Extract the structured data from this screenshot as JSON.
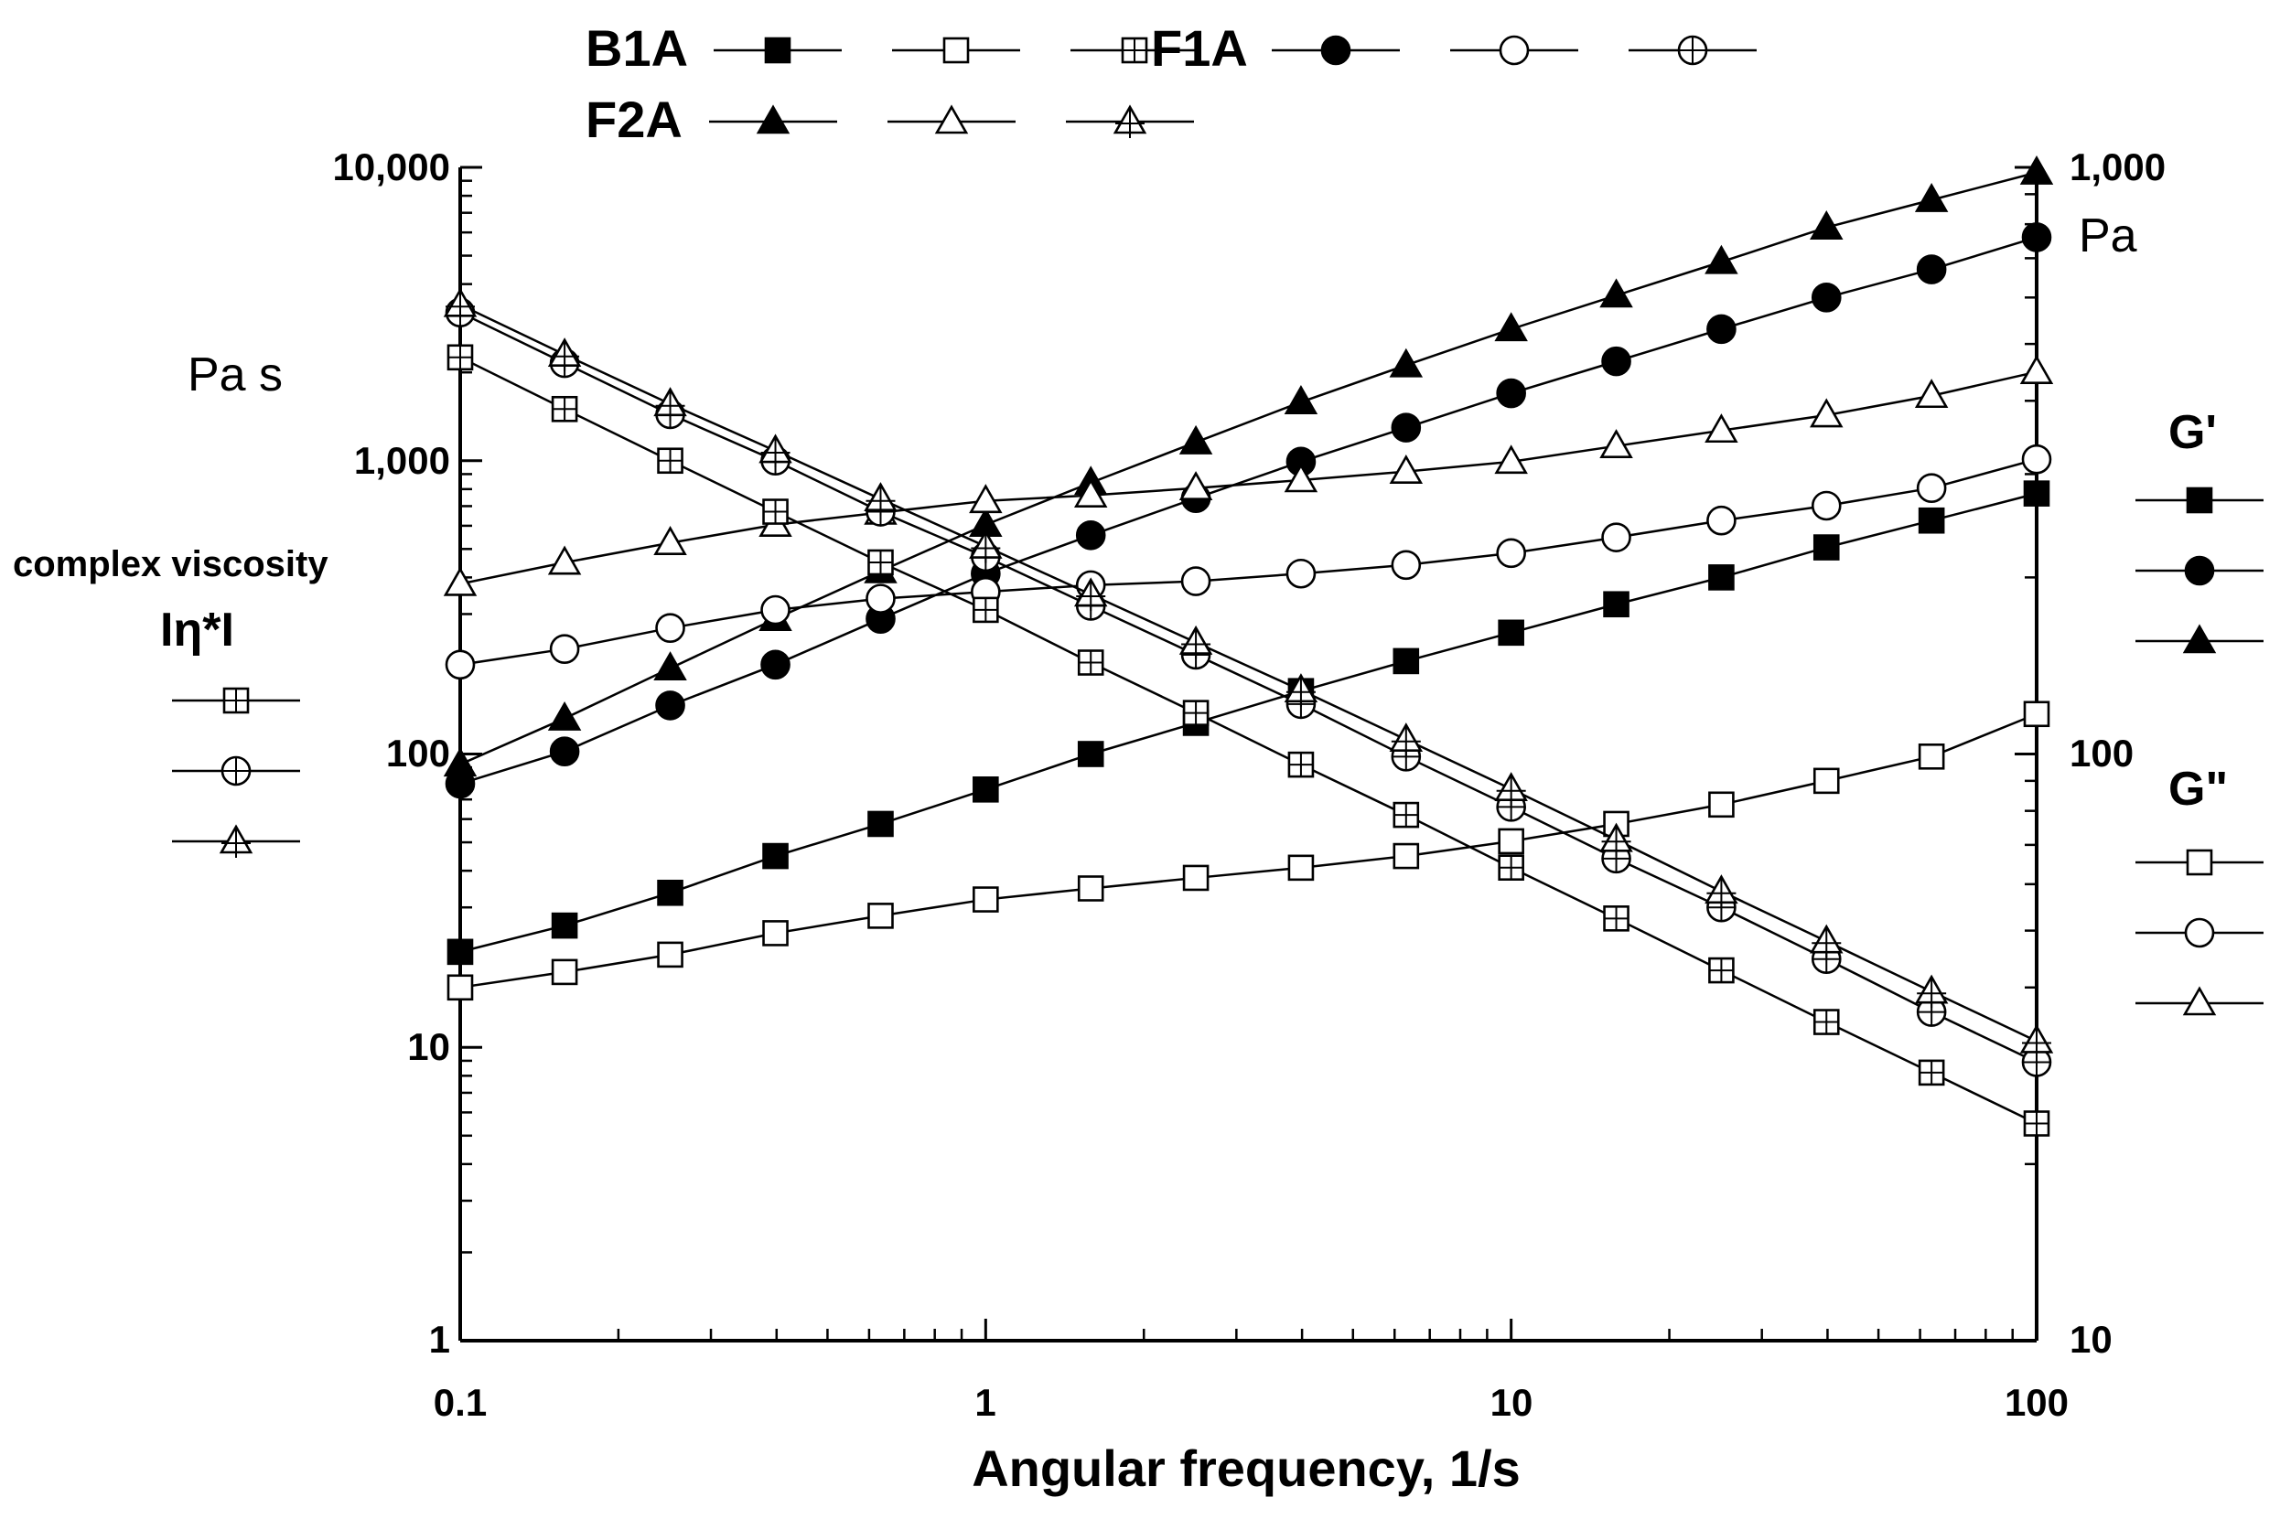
{
  "chart_data": {
    "type": "line",
    "xlabel": "Angular frequency, 1/s",
    "x_scale": "log",
    "xlim": [
      0.1,
      100
    ],
    "x_ticks": [
      "0.1",
      "1",
      "10",
      "100"
    ],
    "y_left": {
      "unit": "Pa s",
      "title": "complex viscosity",
      "symbol": "Iη*I",
      "scale": "log",
      "ylim": [
        1,
        10000
      ],
      "ticks": [
        "1",
        "10",
        "100",
        "1,000",
        "10,000"
      ]
    },
    "y_right": {
      "unit": "Pa",
      "scale": "log",
      "ylim": [
        10,
        1000
      ],
      "ticks": [
        "10",
        "100",
        "1,000"
      ],
      "storage_label": "G'",
      "loss_label": "G\""
    },
    "legend_groups": [
      {
        "name": "B1A",
        "marker": "square"
      },
      {
        "name": "F1A",
        "marker": "circle"
      },
      {
        "name": "F2A",
        "marker": "triangle"
      }
    ],
    "x": [
      0.1,
      0.158,
      0.251,
      0.398,
      0.631,
      1.0,
      1.585,
      2.512,
      3.981,
      6.31,
      10.0,
      15.85,
      25.12,
      39.81,
      63.1,
      100.0
    ],
    "series": [
      {
        "name": "B1A G'",
        "group": "B1A",
        "quantity": "G'",
        "axis": "right",
        "marker": "square",
        "fill": "solid",
        "values": [
          46,
          51,
          58,
          67,
          76,
          87,
          100,
          113,
          128,
          144,
          161,
          180,
          200,
          225,
          250,
          278
        ]
      },
      {
        "name": "F1A G'",
        "group": "F1A",
        "quantity": "G'",
        "axis": "right",
        "marker": "circle",
        "fill": "solid",
        "values": [
          89,
          101,
          121,
          142,
          170,
          203,
          236,
          273,
          315,
          360,
          412,
          467,
          530,
          600,
          670,
          760
        ]
      },
      {
        "name": "F2A G'",
        "group": "F2A",
        "quantity": "G'",
        "axis": "right",
        "marker": "triangle",
        "fill": "solid",
        "values": [
          96,
          115,
          140,
          170,
          205,
          246,
          290,
          340,
          398,
          460,
          530,
          605,
          690,
          790,
          880,
          980
        ]
      },
      {
        "name": "B1A G\"",
        "group": "B1A",
        "quantity": "G\"",
        "axis": "right",
        "marker": "square",
        "fill": "open",
        "values": [
          40,
          42.5,
          45.5,
          49.5,
          53,
          56.5,
          59,
          61.5,
          64,
          67,
          71,
          76,
          82,
          90,
          99,
          117
        ]
      },
      {
        "name": "F1A G\"",
        "group": "F1A",
        "quantity": "G\"",
        "axis": "right",
        "marker": "circle",
        "fill": "open",
        "values": [
          142,
          151,
          164,
          176,
          184,
          189,
          194,
          197,
          203,
          210,
          220,
          234,
          250,
          265,
          284,
          318
        ]
      },
      {
        "name": "F2A G\"",
        "group": "F2A",
        "quantity": "G\"",
        "axis": "right",
        "marker": "triangle",
        "fill": "open",
        "values": [
          195,
          212,
          229,
          246,
          258,
          270,
          276,
          284,
          293,
          303,
          315,
          335,
          356,
          378,
          408,
          448
        ]
      },
      {
        "name": "B1A |η*|",
        "group": "B1A",
        "quantity": "complex viscosity",
        "axis": "left",
        "marker": "square",
        "fill": "crossed",
        "values": [
          2250,
          1500,
          1000,
          670,
          450,
          310,
          205,
          138,
          92,
          62,
          41,
          27.5,
          18.3,
          12.2,
          8.2,
          5.5
        ]
      },
      {
        "name": "F1A |η*|",
        "group": "F1A",
        "quantity": "complex viscosity",
        "axis": "left",
        "marker": "circle",
        "fill": "crossed",
        "values": [
          3200,
          2150,
          1440,
          1000,
          670,
          470,
          320,
          218,
          148,
          98,
          66,
          44,
          30,
          20,
          13.2,
          8.9
        ]
      },
      {
        "name": "F2A |η*|",
        "group": "F2A",
        "quantity": "complex viscosity",
        "axis": "left",
        "marker": "triangle",
        "fill": "crossed",
        "values": [
          3400,
          2300,
          1560,
          1080,
          740,
          510,
          350,
          240,
          165,
          112,
          76,
          51,
          34,
          23,
          15.5,
          10.5
        ]
      }
    ]
  }
}
